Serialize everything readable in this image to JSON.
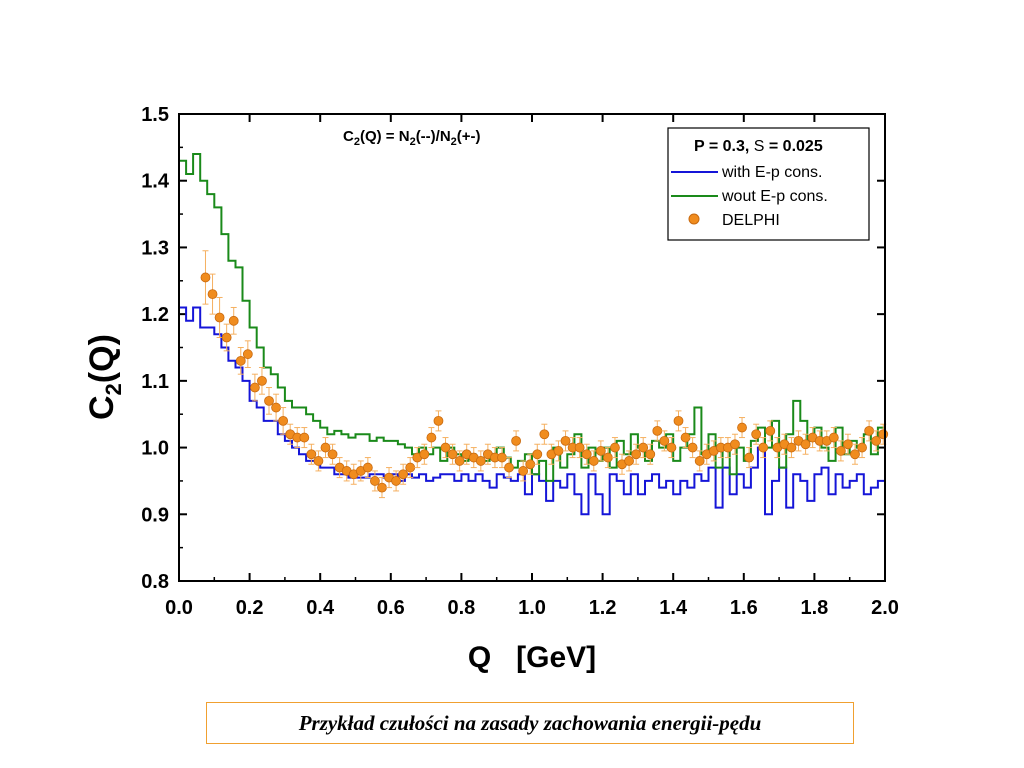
{
  "caption": "Przykład czułości na zasady zachowania energii-pędu",
  "chart_data": {
    "type": "line",
    "xlabel": "Q   [GeV]",
    "ylabel_main": "C",
    "ylabel_sub": "2",
    "ylabel_tail": "(Q)",
    "xlim": [
      0.0,
      2.0
    ],
    "ylim": [
      0.8,
      1.5
    ],
    "xticks": [
      "0.0",
      "0.2",
      "0.4",
      "0.6",
      "0.8",
      "1.0",
      "1.2",
      "1.4",
      "1.6",
      "1.8",
      "2.0"
    ],
    "yticks": [
      "0.8",
      "0.9",
      "1.0",
      "1.1",
      "1.2",
      "1.3",
      "1.4",
      "1.5"
    ],
    "formula": {
      "c": "C",
      "c_sub": "2",
      "mid": "(Q) = N",
      "n1_sub": "2",
      "n1_tail": "(--)/N",
      "n2_sub": "2",
      "n2_tail": "(+-)"
    },
    "legend": {
      "position": "top-right",
      "header_p": "P = 0.3,",
      "header_sigma_symbol": "S",
      "header_sigma_value": "= 0.025",
      "entries": [
        "with E-p cons.",
        "wout E-p cons.",
        "DELPHI"
      ]
    },
    "colors": {
      "with": "#1515d8",
      "wout": "#1a8a1a",
      "delphi": "#f08c1e"
    },
    "series": [
      {
        "name": "with E-p cons.",
        "style": "step",
        "x": [
          0.0,
          0.02,
          0.04,
          0.06,
          0.08,
          0.1,
          0.12,
          0.14,
          0.16,
          0.18,
          0.2,
          0.22,
          0.24,
          0.26,
          0.28,
          0.3,
          0.32,
          0.34,
          0.36,
          0.38,
          0.4,
          0.42,
          0.44,
          0.46,
          0.48,
          0.5,
          0.52,
          0.54,
          0.56,
          0.58,
          0.6,
          0.62,
          0.64,
          0.66,
          0.68,
          0.7,
          0.72,
          0.74,
          0.76,
          0.78,
          0.8,
          0.82,
          0.84,
          0.86,
          0.88,
          0.9,
          0.92,
          0.94,
          0.96,
          0.98,
          1.0,
          1.02,
          1.04,
          1.06,
          1.08,
          1.1,
          1.12,
          1.14,
          1.16,
          1.18,
          1.2,
          1.22,
          1.24,
          1.26,
          1.28,
          1.3,
          1.32,
          1.34,
          1.36,
          1.38,
          1.4,
          1.42,
          1.44,
          1.46,
          1.48,
          1.5,
          1.52,
          1.54,
          1.56,
          1.58,
          1.6,
          1.62,
          1.64,
          1.66,
          1.68,
          1.7,
          1.72,
          1.74,
          1.76,
          1.78,
          1.8,
          1.82,
          1.84,
          1.86,
          1.88,
          1.9,
          1.92,
          1.94,
          1.96,
          1.98,
          2.0
        ],
        "y": [
          1.21,
          1.19,
          1.21,
          1.18,
          1.18,
          1.17,
          1.15,
          1.13,
          1.12,
          1.1,
          1.07,
          1.06,
          1.04,
          1.04,
          1.02,
          1.01,
          1.0,
          0.99,
          0.98,
          0.98,
          0.97,
          0.97,
          0.96,
          0.96,
          0.955,
          0.955,
          0.955,
          0.96,
          0.96,
          0.955,
          0.96,
          0.95,
          0.96,
          0.955,
          0.96,
          0.95,
          0.955,
          0.96,
          0.96,
          0.95,
          0.96,
          0.95,
          0.96,
          0.95,
          0.94,
          0.96,
          0.955,
          0.95,
          0.96,
          0.93,
          0.96,
          0.95,
          0.92,
          0.95,
          0.94,
          0.96,
          0.93,
          0.9,
          0.96,
          0.93,
          0.9,
          0.96,
          0.95,
          0.93,
          0.96,
          0.93,
          0.95,
          0.96,
          0.94,
          0.95,
          0.93,
          0.95,
          0.94,
          0.96,
          0.95,
          0.97,
          0.91,
          0.97,
          0.93,
          0.96,
          0.94,
          0.97,
          1.0,
          0.9,
          0.95,
          0.97,
          0.91,
          0.96,
          0.95,
          0.92,
          0.96,
          0.97,
          0.93,
          0.96,
          0.94,
          0.95,
          0.96,
          0.93,
          0.94,
          0.95,
          0.97
        ]
      },
      {
        "name": "wout E-p cons.",
        "style": "step",
        "x": [
          0.0,
          0.02,
          0.04,
          0.06,
          0.08,
          0.1,
          0.12,
          0.14,
          0.16,
          0.18,
          0.2,
          0.22,
          0.24,
          0.26,
          0.28,
          0.3,
          0.32,
          0.34,
          0.36,
          0.38,
          0.4,
          0.42,
          0.44,
          0.46,
          0.48,
          0.5,
          0.52,
          0.54,
          0.56,
          0.58,
          0.6,
          0.62,
          0.64,
          0.66,
          0.68,
          0.7,
          0.72,
          0.74,
          0.76,
          0.78,
          0.8,
          0.82,
          0.84,
          0.86,
          0.88,
          0.9,
          0.92,
          0.94,
          0.96,
          0.98,
          1.0,
          1.02,
          1.04,
          1.06,
          1.08,
          1.1,
          1.12,
          1.14,
          1.16,
          1.18,
          1.2,
          1.22,
          1.24,
          1.26,
          1.28,
          1.3,
          1.32,
          1.34,
          1.36,
          1.38,
          1.4,
          1.42,
          1.44,
          1.46,
          1.48,
          1.5,
          1.52,
          1.54,
          1.56,
          1.58,
          1.6,
          1.62,
          1.64,
          1.66,
          1.68,
          1.7,
          1.72,
          1.74,
          1.76,
          1.78,
          1.8,
          1.82,
          1.84,
          1.86,
          1.88,
          1.9,
          1.92,
          1.94,
          1.96,
          1.98,
          2.0
        ],
        "y": [
          1.43,
          1.41,
          1.44,
          1.4,
          1.38,
          1.36,
          1.32,
          1.28,
          1.27,
          1.22,
          1.18,
          1.15,
          1.12,
          1.11,
          1.09,
          1.07,
          1.06,
          1.06,
          1.05,
          1.04,
          1.03,
          1.02,
          1.025,
          1.02,
          1.015,
          1.02,
          1.02,
          1.01,
          1.015,
          1.01,
          1.01,
          1.005,
          1.0,
          0.99,
          1.0,
          0.99,
          1.0,
          0.98,
          1.0,
          0.99,
          0.98,
          0.99,
          0.985,
          0.98,
          0.99,
          1.0,
          0.985,
          0.97,
          0.98,
          0.99,
          0.96,
          0.98,
          0.95,
          1.0,
          0.97,
          0.99,
          1.02,
          0.97,
          1.0,
          0.98,
          1.0,
          0.97,
          1.01,
          0.99,
          1.02,
          1.0,
          0.98,
          1.01,
          1.0,
          1.02,
          0.98,
          1.0,
          1.02,
          1.06,
          0.99,
          1.02,
          0.97,
          1.0,
          0.96,
          1.0,
          0.98,
          1.01,
          1.03,
          1.0,
          1.04,
          0.97,
          1.02,
          1.07,
          1.04,
          1.01,
          1.03,
          1.0,
          0.98,
          1.03,
          0.99,
          1.01,
          1.0,
          1.02,
          0.99,
          1.03,
          1.0
        ]
      },
      {
        "name": "DELPHI",
        "style": "points",
        "x": [
          0.075,
          0.095,
          0.115,
          0.135,
          0.155,
          0.175,
          0.195,
          0.215,
          0.235,
          0.255,
          0.275,
          0.295,
          0.315,
          0.335,
          0.355,
          0.375,
          0.395,
          0.415,
          0.435,
          0.455,
          0.475,
          0.495,
          0.515,
          0.535,
          0.555,
          0.575,
          0.595,
          0.615,
          0.635,
          0.655,
          0.675,
          0.695,
          0.715,
          0.735,
          0.755,
          0.775,
          0.795,
          0.815,
          0.835,
          0.855,
          0.875,
          0.895,
          0.915,
          0.935,
          0.955,
          0.975,
          0.995,
          1.015,
          1.035,
          1.055,
          1.075,
          1.095,
          1.115,
          1.135,
          1.155,
          1.175,
          1.195,
          1.215,
          1.235,
          1.255,
          1.275,
          1.295,
          1.315,
          1.335,
          1.355,
          1.375,
          1.395,
          1.415,
          1.435,
          1.455,
          1.475,
          1.495,
          1.515,
          1.535,
          1.555,
          1.575,
          1.595,
          1.615,
          1.635,
          1.655,
          1.675,
          1.695,
          1.715,
          1.735,
          1.755,
          1.775,
          1.795,
          1.815,
          1.835,
          1.855,
          1.875,
          1.895,
          1.915,
          1.935,
          1.955,
          1.975,
          1.995
        ],
        "y": [
          1.255,
          1.23,
          1.195,
          1.165,
          1.19,
          1.13,
          1.14,
          1.09,
          1.1,
          1.07,
          1.06,
          1.04,
          1.02,
          1.015,
          1.015,
          0.99,
          0.98,
          1.0,
          0.99,
          0.97,
          0.965,
          0.96,
          0.965,
          0.97,
          0.95,
          0.94,
          0.955,
          0.95,
          0.96,
          0.97,
          0.985,
          0.99,
          1.015,
          1.04,
          1.0,
          0.99,
          0.98,
          0.99,
          0.985,
          0.98,
          0.99,
          0.985,
          0.985,
          0.97,
          1.01,
          0.965,
          0.975,
          0.99,
          1.02,
          0.99,
          0.995,
          1.01,
          1.0,
          1.0,
          0.99,
          0.98,
          0.995,
          0.985,
          1.0,
          0.975,
          0.98,
          0.99,
          1.0,
          0.99,
          1.025,
          1.01,
          1.0,
          1.04,
          1.015,
          1.0,
          0.98,
          0.99,
          0.995,
          1.0,
          1.0,
          1.005,
          1.03,
          0.985,
          1.02,
          1.0,
          1.025,
          1.0,
          1.005,
          1.0,
          1.01,
          1.005,
          1.015,
          1.01,
          1.01,
          1.015,
          0.995,
          1.005,
          0.99,
          1.0,
          1.025,
          1.01,
          1.02
        ],
        "err": [
          0.04,
          0.03,
          0.03,
          0.02,
          0.02,
          0.02,
          0.02,
          0.02,
          0.02,
          0.02,
          0.02,
          0.02,
          0.015,
          0.015,
          0.015,
          0.015,
          0.015,
          0.015,
          0.015,
          0.015,
          0.015,
          0.015,
          0.015,
          0.015,
          0.015,
          0.015,
          0.015,
          0.015,
          0.015,
          0.015,
          0.015,
          0.015,
          0.015,
          0.015,
          0.015,
          0.015,
          0.015,
          0.015,
          0.015,
          0.015,
          0.015,
          0.015,
          0.015,
          0.015,
          0.015,
          0.015,
          0.015,
          0.015,
          0.015,
          0.015,
          0.015,
          0.015,
          0.015,
          0.015,
          0.015,
          0.015,
          0.015,
          0.015,
          0.015,
          0.015,
          0.015,
          0.015,
          0.015,
          0.015,
          0.015,
          0.015,
          0.015,
          0.015,
          0.015,
          0.015,
          0.015,
          0.015,
          0.015,
          0.015,
          0.015,
          0.015,
          0.015,
          0.015,
          0.015,
          0.015,
          0.015,
          0.015,
          0.015,
          0.015,
          0.015,
          0.015,
          0.015,
          0.015,
          0.015,
          0.015,
          0.015,
          0.015,
          0.015,
          0.015,
          0.015,
          0.015,
          0.015
        ]
      }
    ]
  }
}
